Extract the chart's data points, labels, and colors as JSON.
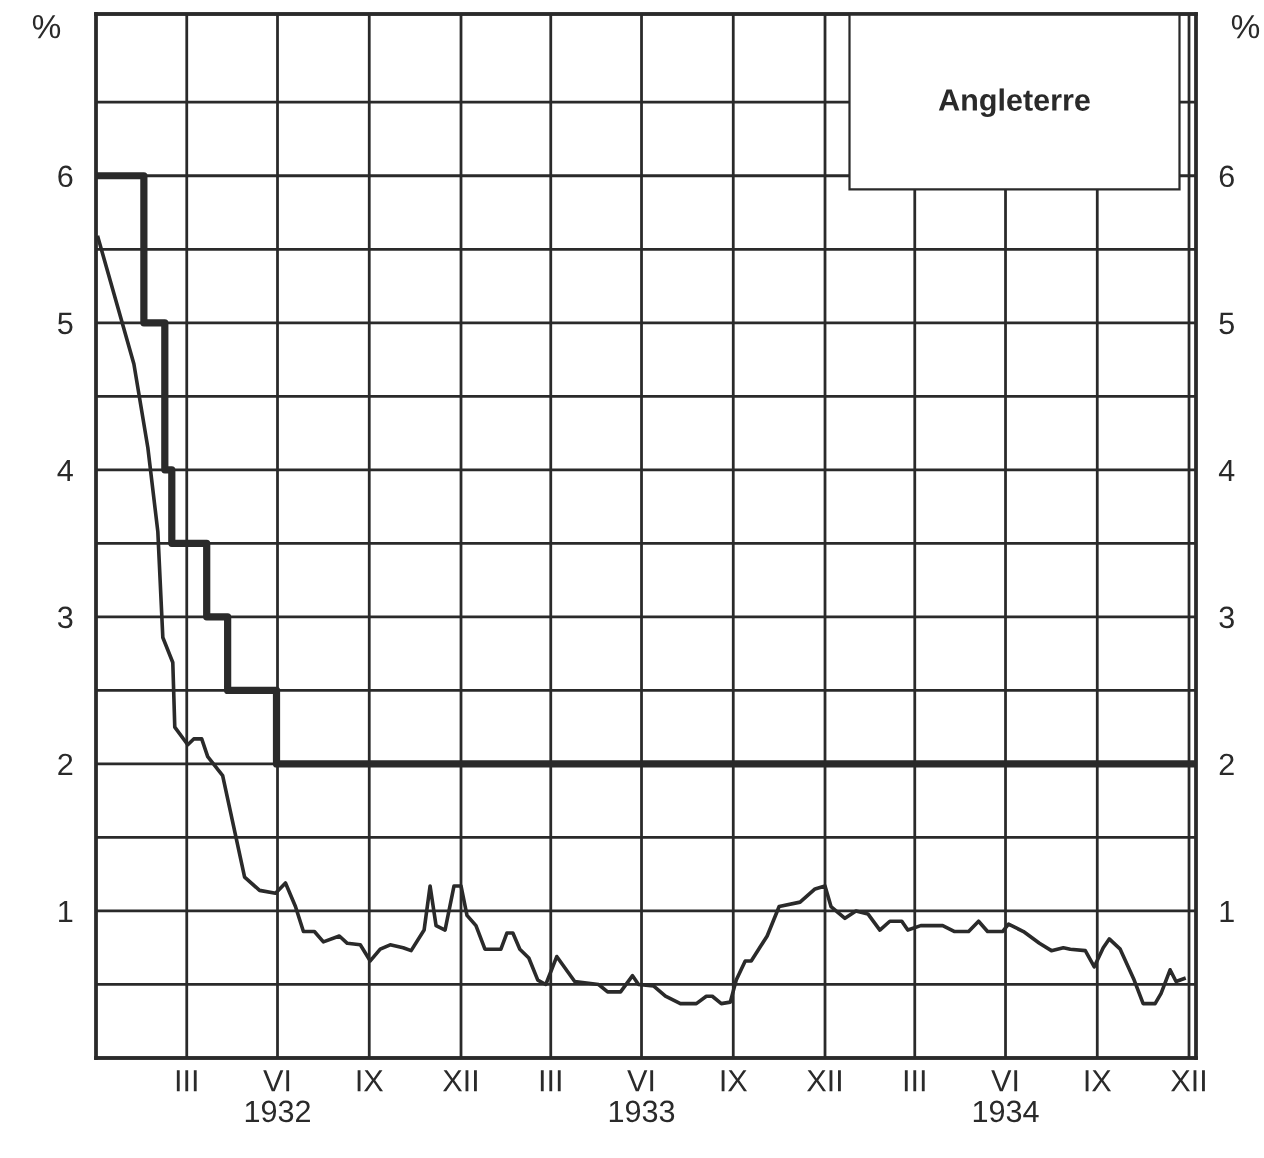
{
  "chart_data": {
    "type": "line",
    "title": "Angleterre",
    "ylabel": "%",
    "y2label": "%",
    "xlim": [
      "1932-01-01",
      "1935-01-08"
    ],
    "ylim": [
      0,
      7.1
    ],
    "y2lim": [
      0,
      7.1
    ],
    "xticks": [
      {
        "value": "1932-04-01",
        "label": "III"
      },
      {
        "value": "1932-07-01",
        "label": "VI\n1932"
      },
      {
        "value": "1932-10-01",
        "label": "IX"
      },
      {
        "value": "1933-01-01",
        "label": "XII"
      },
      {
        "value": "1933-04-01",
        "label": "III"
      },
      {
        "value": "1933-07-01",
        "label": "VI\n1933"
      },
      {
        "value": "1933-10-01",
        "label": "IX"
      },
      {
        "value": "1934-01-01",
        "label": "XII"
      },
      {
        "value": "1934-04-01",
        "label": "III"
      },
      {
        "value": "1934-07-01",
        "label": "VI\n1934"
      },
      {
        "value": "1934-10-01",
        "label": "IX"
      },
      {
        "value": "1935-01-01",
        "label": "XII"
      }
    ],
    "yticks": [
      {
        "value": 0.5,
        "label": null
      },
      1,
      {
        "value": 1.5,
        "label": null
      },
      2,
      {
        "value": 2.5,
        "label": null
      },
      3,
      {
        "value": 3.5,
        "label": null
      },
      4,
      {
        "value": 4.5,
        "label": null
      },
      5,
      {
        "value": 5.5,
        "label": null
      },
      6,
      {
        "value": 6.5,
        "label": null
      }
    ],
    "y2ticks": [
      1,
      2,
      3,
      4,
      5,
      6
    ],
    "grid": true,
    "marker": "none",
    "line_style": "solid",
    "series": [
      {
        "type": "step",
        "color": "#2a2a2a",
        "x": [
          "1932-01-01",
          "1932-02-18",
          "1932-03-10",
          "1932-03-17",
          "1932-04-21",
          "1932-05-12",
          "1932-06-30",
          "1935-01-08"
        ],
        "values": [
          6,
          5,
          4,
          3.5,
          3,
          2.5,
          2,
          2
        ]
      },
      {
        "color": "#2a2a2a",
        "x": [
          "1932-01-03",
          "1932-02-08",
          "1932-02-22",
          "1932-03-03",
          "1932-03-08",
          "1932-03-18",
          "1932-03-20",
          "1932-04-02",
          "1932-04-08",
          "1932-04-16",
          "1932-04-22",
          "1932-05-07",
          "1932-05-29",
          "1932-06-13",
          "1932-06-29",
          "1932-07-09",
          "1932-07-19",
          "1932-07-27",
          "1932-08-07",
          "1932-08-16",
          "1932-09-01",
          "1932-09-09",
          "1932-09-22",
          "1932-10-02",
          "1932-10-12",
          "1932-10-22",
          "1932-11-04",
          "1932-11-12",
          "1932-11-25",
          "1932-12-01",
          "1932-12-07",
          "1932-12-16",
          "1932-12-25",
          "1933-01-01",
          "1933-01-07",
          "1933-01-16",
          "1933-01-25",
          "1933-02-10",
          "1933-02-16",
          "1933-02-22",
          "1933-03-01",
          "1933-03-10",
          "1933-03-19",
          "1933-03-27",
          "1933-04-07",
          "1933-04-25",
          "1933-05-19",
          "1933-05-28",
          "1933-06-10",
          "1933-06-22",
          "1933-06-28",
          "1933-07-13",
          "1933-07-25",
          "1933-08-09",
          "1933-08-25",
          "1933-09-04",
          "1933-09-10",
          "1933-09-19",
          "1933-09-28",
          "1933-10-04",
          "1933-10-13",
          "1933-10-19",
          "1933-11-04",
          "1933-11-16",
          "1933-12-07",
          "1933-12-22",
          "1934-01-01",
          "1934-01-07",
          "1934-01-21",
          "1934-02-01",
          "1934-02-13",
          "1934-02-25",
          "1934-03-07",
          "1934-03-19",
          "1934-03-25",
          "1934-04-07",
          "1934-04-29",
          "1934-05-11",
          "1934-05-25",
          "1934-06-04",
          "1934-06-13",
          "1934-06-28",
          "1934-07-04",
          "1934-07-19",
          "1934-08-04",
          "1934-08-16",
          "1934-08-28",
          "1934-09-04",
          "1934-09-19",
          "1934-09-28",
          "1934-10-07",
          "1934-10-13",
          "1934-10-24",
          "1934-11-07",
          "1934-11-16",
          "1934-11-28",
          "1934-12-04",
          "1934-12-13",
          "1934-12-19",
          "1934-12-27"
        ],
        "values": [
          5.58,
          4.72,
          4.15,
          3.58,
          2.86,
          2.69,
          2.25,
          2.13,
          2.17,
          2.17,
          2.05,
          1.92,
          1.23,
          1.14,
          1.12,
          1.19,
          1.03,
          0.86,
          0.86,
          0.79,
          0.83,
          0.78,
          0.77,
          0.66,
          0.74,
          0.77,
          0.75,
          0.73,
          0.87,
          1.17,
          0.9,
          0.87,
          1.17,
          1.17,
          0.97,
          0.9,
          0.74,
          0.74,
          0.85,
          0.85,
          0.74,
          0.68,
          0.53,
          0.5,
          0.69,
          0.52,
          0.5,
          0.45,
          0.45,
          0.56,
          0.5,
          0.49,
          0.42,
          0.37,
          0.37,
          0.42,
          0.42,
          0.37,
          0.38,
          0.53,
          0.66,
          0.66,
          0.83,
          1.03,
          1.06,
          1.15,
          1.17,
          1.03,
          0.95,
          1.0,
          0.98,
          0.87,
          0.93,
          0.93,
          0.87,
          0.9,
          0.9,
          0.86,
          0.86,
          0.93,
          0.86,
          0.86,
          0.91,
          0.86,
          0.78,
          0.73,
          0.75,
          0.74,
          0.73,
          0.62,
          0.75,
          0.81,
          0.74,
          0.53,
          0.37,
          0.37,
          0.44,
          0.6,
          0.52,
          0.54
        ]
      }
    ]
  }
}
